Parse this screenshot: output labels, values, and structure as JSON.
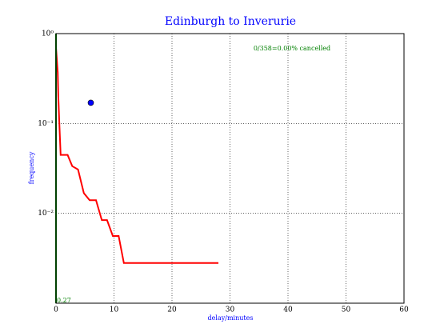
{
  "chart_data": {
    "type": "line",
    "title": "Edinburgh to Inverurie",
    "xlabel": "delay/minutes",
    "ylabel": "frequency",
    "annotations": [
      "0/358=0.00% cancelled",
      "0.27"
    ],
    "xlim": [
      0,
      60
    ],
    "xticks": [
      0,
      10,
      20,
      30,
      40,
      50,
      60
    ],
    "ylim": [
      0.001,
      1
    ],
    "yscale": "log",
    "yticks": [
      {
        "value": 1,
        "label": "10⁰"
      },
      {
        "value": 0.1,
        "label": "10⁻¹"
      },
      {
        "value": 0.01,
        "label": "10⁻²"
      }
    ],
    "grid": true,
    "series": [
      {
        "type": "line",
        "color": "#ff0000",
        "x": [
          0,
          0.3,
          0.4,
          0.55,
          0.8,
          2,
          2.8,
          3.8,
          4.8,
          5.8,
          6.9,
          7.9,
          8.8,
          9.8,
          10.8,
          11.7,
          28
        ],
        "values": [
          0.7,
          0.37,
          0.2,
          0.11,
          0.0447,
          0.0447,
          0.0335,
          0.0307,
          0.0168,
          0.014,
          0.014,
          0.0084,
          0.0084,
          0.0056,
          0.0056,
          0.0028,
          0.0028
        ]
      },
      {
        "type": "line",
        "color": "#008000",
        "x": [
          0,
          0
        ],
        "values": [
          1,
          0.001
        ]
      },
      {
        "type": "scatter",
        "color": "#0000ff",
        "x": [
          6
        ],
        "values": [
          0.17
        ]
      }
    ]
  }
}
